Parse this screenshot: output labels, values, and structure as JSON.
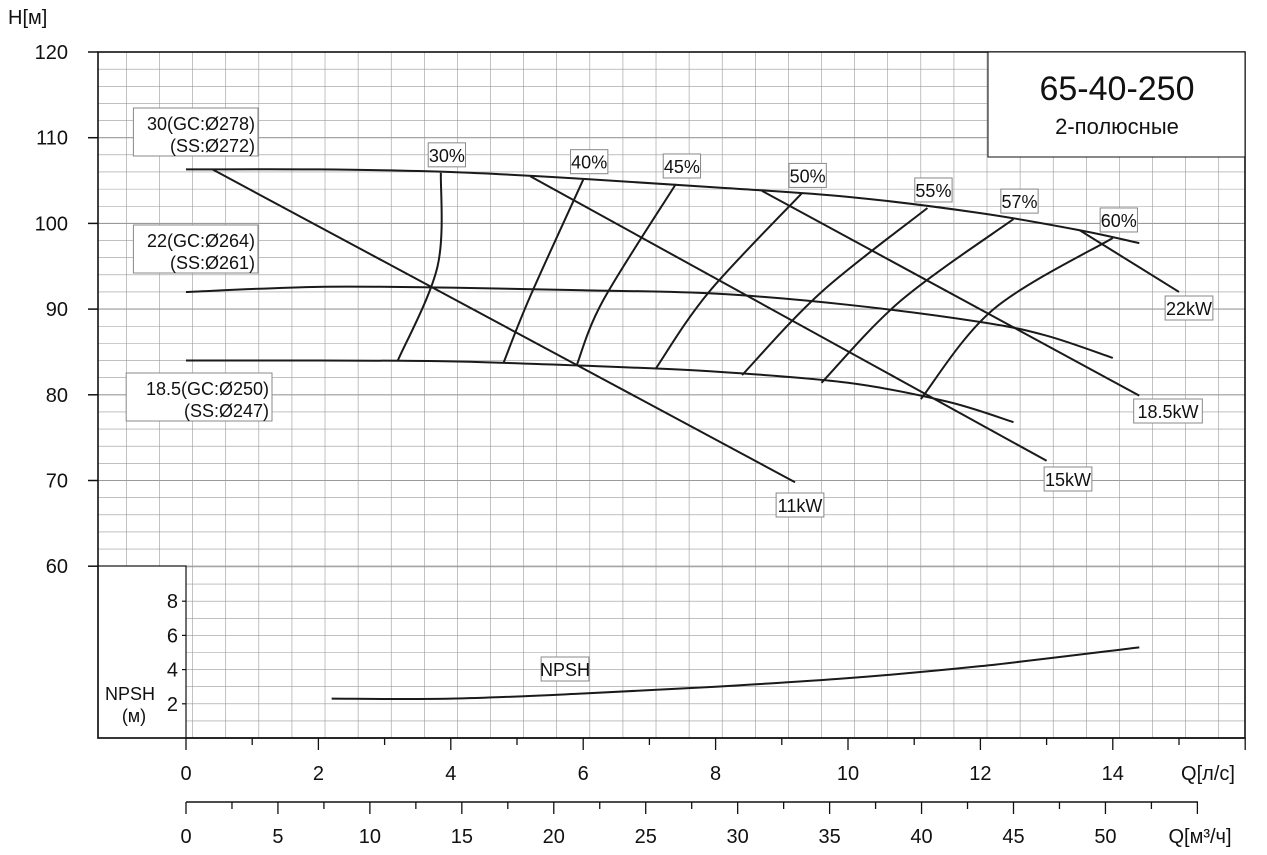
{
  "chart_data": {
    "type": "line",
    "title": "65-40-250",
    "subtitle": "2-полюсные",
    "x_axis": {
      "label": "Q[л/с]",
      "range": [
        0,
        16
      ],
      "ticks": [
        "0",
        "2",
        "4",
        "6",
        "8",
        "10",
        "12",
        "14"
      ]
    },
    "x2_axis": {
      "label": "Q[м³/ч]",
      "range": [
        0,
        57.6
      ],
      "ticks": [
        "0",
        "5",
        "10",
        "15",
        "20",
        "25",
        "30",
        "35",
        "40",
        "45",
        "50"
      ]
    },
    "y_axis": {
      "label": "H[м]",
      "range": [
        60,
        120
      ],
      "ticks": [
        "60",
        "70",
        "80",
        "90",
        "100",
        "110",
        "120"
      ]
    },
    "npsh_axis": {
      "label": "NPSH",
      "unit": "(м)",
      "range": [
        0,
        10
      ],
      "ticks": [
        "2",
        "4",
        "6",
        "8"
      ]
    },
    "grid": true,
    "impeller_curves": [
      {
        "name": "30(GC:Ø278)",
        "name2": "(SS:Ø272)",
        "points": [
          [
            0,
            106.3
          ],
          [
            2,
            106.3
          ],
          [
            4,
            106.0
          ],
          [
            6,
            105.2
          ],
          [
            8,
            104.2
          ],
          [
            10,
            103.1
          ],
          [
            12,
            101.2
          ],
          [
            13.5,
            99.2
          ],
          [
            14.4,
            97.7
          ]
        ]
      },
      {
        "name": "22(GC:Ø264)",
        "name2": "(SS:Ø261)",
        "points": [
          [
            0,
            92.0
          ],
          [
            2,
            92.6
          ],
          [
            4,
            92.5
          ],
          [
            6,
            92.2
          ],
          [
            8,
            91.8
          ],
          [
            10,
            90.5
          ],
          [
            12,
            88.5
          ],
          [
            13,
            86.9
          ],
          [
            14,
            84.3
          ]
        ]
      },
      {
        "name": "18.5(GC:Ø250)",
        "name2": "(SS:Ø247)",
        "points": [
          [
            0,
            84.0
          ],
          [
            2,
            84.0
          ],
          [
            4,
            83.9
          ],
          [
            6,
            83.4
          ],
          [
            8,
            82.7
          ],
          [
            10,
            81.4
          ],
          [
            11.5,
            79.2
          ],
          [
            12.5,
            76.8
          ]
        ]
      }
    ],
    "power_lines": [
      {
        "name": "11kW",
        "points": [
          [
            0.4,
            106.3
          ],
          [
            9.2,
            69.8
          ]
        ]
      },
      {
        "name": "15kW",
        "points": [
          [
            5.2,
            105.5
          ],
          [
            13.0,
            72.3
          ]
        ]
      },
      {
        "name": "18.5kW",
        "points": [
          [
            8.7,
            103.8
          ],
          [
            14.4,
            79.9
          ]
        ]
      },
      {
        "name": "22kW",
        "points": [
          [
            13.5,
            99.2
          ],
          [
            15.0,
            92.0
          ]
        ]
      }
    ],
    "efficiency_curves": [
      {
        "name": "30%",
        "points": [
          [
            3.2,
            84.0
          ],
          [
            3.8,
            95.0
          ],
          [
            3.85,
            105.9
          ]
        ]
      },
      {
        "name": "40%",
        "points": [
          [
            4.8,
            83.8
          ],
          [
            5.2,
            91.5
          ],
          [
            6.0,
            105.1
          ]
        ]
      },
      {
        "name": "45%",
        "points": [
          [
            5.9,
            83.4
          ],
          [
            6.3,
            91.0
          ],
          [
            7.4,
            104.6
          ]
        ]
      },
      {
        "name": "50%",
        "points": [
          [
            7.1,
            83.1
          ],
          [
            7.9,
            92.0
          ],
          [
            9.3,
            103.5
          ]
        ]
      },
      {
        "name": "55%",
        "points": [
          [
            8.4,
            82.3
          ],
          [
            9.6,
            92.0
          ],
          [
            11.2,
            101.8
          ]
        ]
      },
      {
        "name": "57%",
        "points": [
          [
            9.6,
            81.4
          ],
          [
            10.8,
            91.0
          ],
          [
            12.5,
            100.5
          ]
        ]
      },
      {
        "name": "60%",
        "points": [
          [
            11.1,
            79.5
          ],
          [
            12.2,
            90.0
          ],
          [
            14.0,
            98.3
          ]
        ]
      }
    ],
    "npsh_curve": {
      "name": "NPSH",
      "points": [
        [
          2.2,
          2.3
        ],
        [
          4.0,
          2.3
        ],
        [
          6.0,
          2.6
        ],
        [
          8.0,
          3.0
        ],
        [
          10.0,
          3.5
        ],
        [
          12.0,
          4.2
        ],
        [
          14.4,
          5.3
        ]
      ]
    }
  },
  "colors": {
    "background": "#ffffff",
    "grid": "#9a9a9a",
    "axis": "#111111",
    "curve": "#1a1a1a"
  }
}
